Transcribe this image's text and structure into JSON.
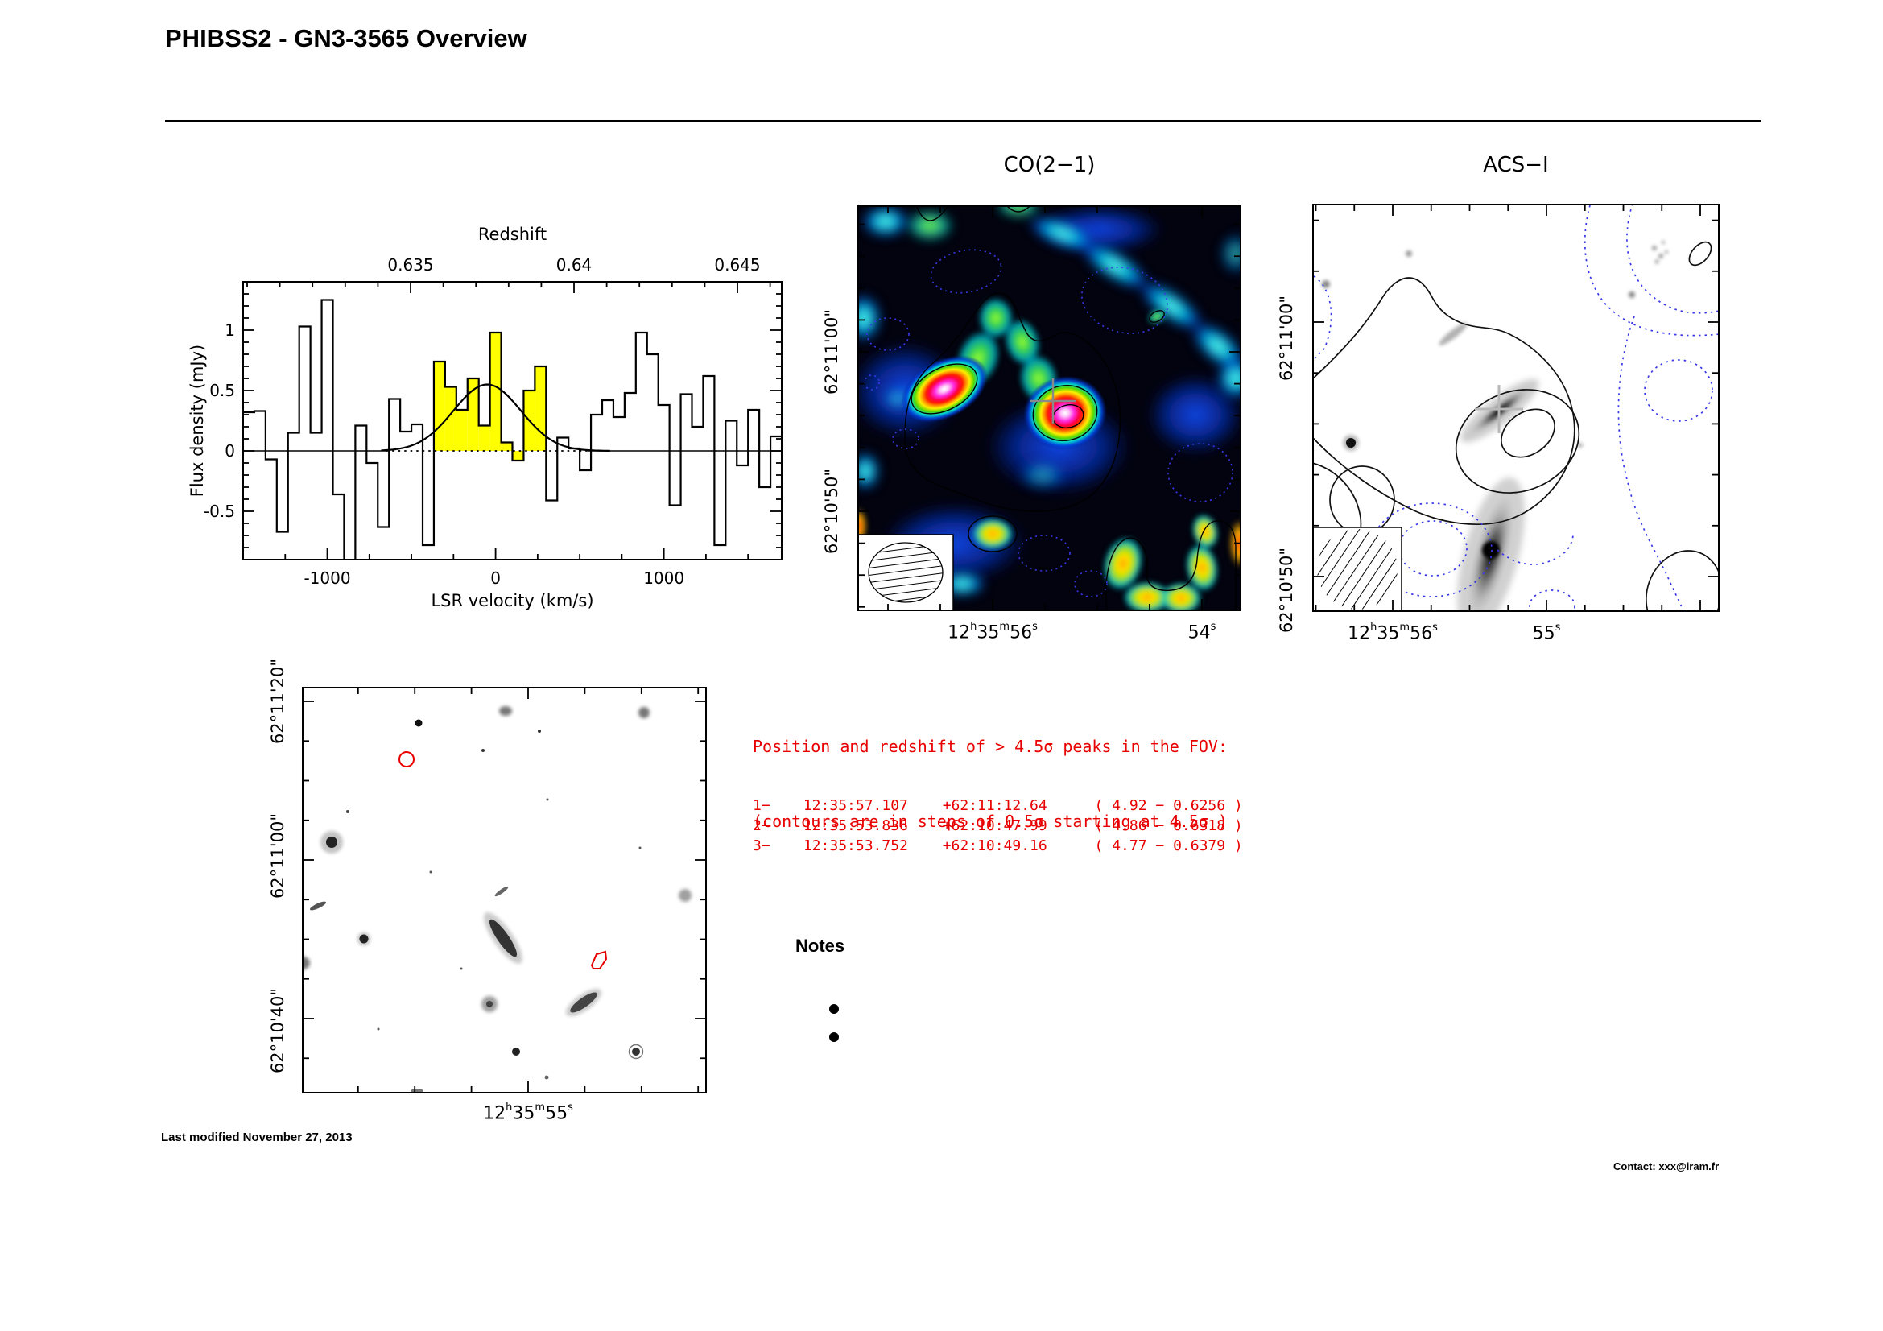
{
  "page": {
    "title": "PHIBSS2 - GN3-3565 Overview",
    "last_modified": "Last modified November 27, 2013",
    "contact": "Contact: xxx@iram.fr"
  },
  "notes": {
    "title": "Notes"
  },
  "red_block": {
    "color": "#e80000",
    "header_line1": "Position and redshift of > 4.5σ peaks in the FOV:",
    "header_line2": "(contours are in steps of 0.5σ starting at 4.5σ )",
    "peaks": [
      {
        "num": "1−",
        "ra": "12:35:57.107",
        "dec": "+62:11:12.64",
        "detail": "( 4.92 − 0.6256 )"
      },
      {
        "num": "2−",
        "ra": "12:35:53.836",
        "dec": "+62:10:47.99",
        "detail": "( 4.86 − 0.6318 )"
      },
      {
        "num": "3−",
        "ra": "12:35:53.752",
        "dec": "+62:10:49.16",
        "detail": "( 4.77 − 0.6379 )"
      }
    ]
  },
  "co_panel": {
    "title": "CO(2−1)",
    "dec_labels": [
      "62°11'00\"",
      "62°10'50\""
    ],
    "ra_labels": [
      "12h35m56s",
      "54s"
    ]
  },
  "acs_panel": {
    "title": "ACS−I",
    "dec_labels": [
      "62°11'00\"",
      "62°10'50\""
    ],
    "ra_labels": [
      "12h35m56s",
      "55s"
    ]
  },
  "field_panel": {
    "dec_labels": [
      "62°11'20\"",
      "62°11'00\"",
      "62°10'40\""
    ],
    "ra_labels": [
      "12h35m55s"
    ]
  },
  "chart_data": {
    "type": "bar",
    "subtype": "spectrum-histogram",
    "xlabel": "LSR velocity (km/s)",
    "ylabel": "Flux density (mJy)",
    "top_axis_label": "Redshift",
    "xlim": [
      -1500,
      1700
    ],
    "ylim": [
      -0.9,
      1.4
    ],
    "x_major_ticks": [
      -1000,
      0,
      1000
    ],
    "x_major_tick_labels": [
      "-1000",
      "0",
      "1000"
    ],
    "x_minor_step": 250,
    "y_major_ticks": [
      -0.5,
      0,
      0.5,
      1
    ],
    "y_major_tick_labels": [
      "-0.5",
      "0",
      "0.5",
      "1"
    ],
    "y_minor_step": 0.1,
    "top_ticks": {
      "labels": [
        "0.635",
        "0.64",
        "0.645"
      ],
      "velocities": [
        -505,
        466,
        1437
      ],
      "minor_step_velocity": 194.2,
      "minor_start_velocity": -1476
    },
    "bins": {
      "start": -1500,
      "width": 66.667,
      "values": [
        0.32,
        0.33,
        -0.07,
        -0.67,
        0.15,
        1.03,
        0.15,
        1.25,
        -0.36,
        -1.05,
        0.21,
        -0.1,
        -0.63,
        0.43,
        0.16,
        0.22,
        -0.78,
        0.74,
        0.53,
        0.34,
        0.6,
        0.21,
        0.98,
        0.07,
        -0.08,
        0.5,
        0.7,
        -0.41,
        0.11,
        0.02,
        -0.16,
        0.3,
        0.42,
        0.28,
        0.48,
        0.98,
        0.8,
        0.38,
        -0.45,
        0.47,
        0.2,
        0.62,
        -0.78,
        0.25,
        -0.12,
        0.34,
        -0.3,
        0.12
      ]
    },
    "signal_bins": [
      17,
      26
    ],
    "signal_color": "#ffff00",
    "fit": {
      "type": "gaussian",
      "center": -50,
      "sigma": 200,
      "amplitude": 0.55,
      "baseline_dotted_range": [
        -650,
        550
      ]
    }
  }
}
